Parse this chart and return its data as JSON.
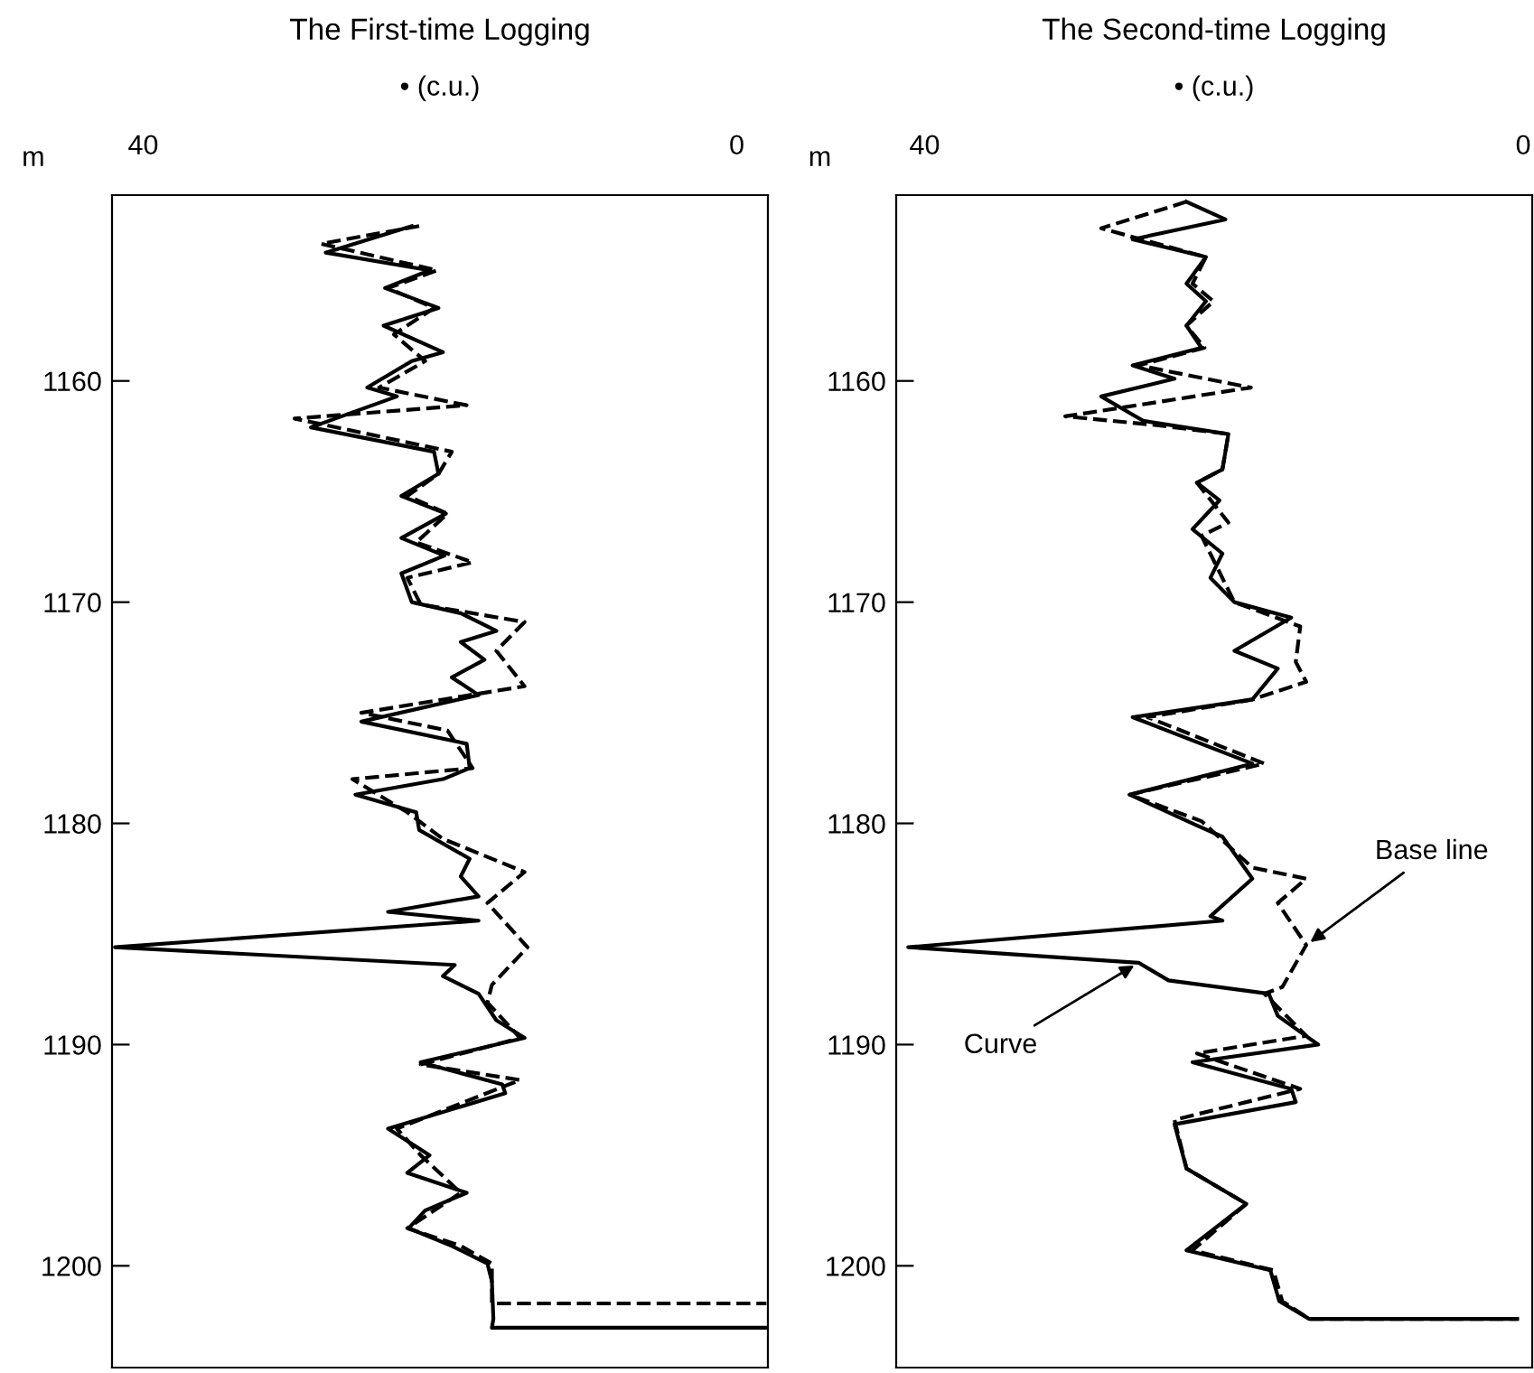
{
  "chart_data": [
    {
      "type": "line",
      "title": "The First-time Logging",
      "xlabel": "• (c.u.)",
      "ylabel": "m",
      "xlim": [
        42.1,
        -2.1
      ],
      "xticks": [
        40,
        0
      ],
      "ylim": [
        1204.6,
        1151.6
      ],
      "yticks": [
        1160,
        1170,
        1180,
        1190,
        1200
      ],
      "grid": false,
      "series": [
        {
          "color": "#000000",
          "line_style": "solid",
          "x": [
            21.9,
            27.7,
            20.7,
            23.7,
            20.1,
            23.8,
            19.8,
            21.9,
            24.9,
            22.9,
            28.7,
            20.4,
            20.1,
            22.6,
            19.6,
            22.6,
            19.7,
            22.6,
            21.9,
            18.6,
            16.2,
            18.6,
            17.0,
            19.2,
            17.4,
            25.3,
            18.2,
            18.0,
            19.8,
            25.7,
            21.6,
            21.4,
            18.0,
            18.6,
            17.4,
            23.5,
            17.4,
            41.9,
            19.0,
            19.8,
            17.4,
            16.2,
            14.3,
            21.3,
            15.8,
            15.6,
            23.5,
            20.7,
            22.2,
            18.2,
            21.0,
            22.1,
            19.2,
            16.8,
            16.5,
            16.4,
            16.5,
            -2
          ],
          "values": [
            1153.0,
            1154.2,
            1155.0,
            1155.8,
            1156.7,
            1157.5,
            1158.7,
            1159.1,
            1160.3,
            1160.7,
            1162.1,
            1163.2,
            1164.2,
            1165.2,
            1166.0,
            1167.1,
            1167.9,
            1168.7,
            1170.0,
            1170.5,
            1171.3,
            1171.8,
            1172.6,
            1173.4,
            1174.2,
            1175.4,
            1176.4,
            1177.5,
            1178.0,
            1178.7,
            1179.5,
            1180.3,
            1181.6,
            1182.4,
            1183.3,
            1184.0,
            1184.4,
            1185.6,
            1186.4,
            1186.9,
            1187.7,
            1188.9,
            1189.7,
            1190.8,
            1191.8,
            1192.2,
            1193.8,
            1195.0,
            1195.8,
            1196.7,
            1197.5,
            1198.3,
            1199.1,
            1199.9,
            1200.7,
            1202.4,
            1202.8,
            1202.8
          ]
        },
        {
          "color": "#000000",
          "line_style": "dashed",
          "x": [
            21.4,
            28.0,
            20.2,
            23.5,
            20.4,
            23.1,
            21.0,
            24.1,
            18.2,
            29.8,
            19.2,
            20.1,
            22.2,
            19.5,
            21.6,
            17.8,
            22.2,
            21.3,
            14.3,
            16.2,
            14.3,
            25.3,
            19.5,
            17.8,
            25.9,
            22.2,
            19.8,
            14.3,
            16.8,
            14.1,
            16.5,
            16.8,
            14.6,
            21.3,
            14.6,
            22.9,
            21.3,
            18.6,
            22.2,
            18.6,
            16.5,
            16.5,
            -2
          ],
          "values": [
            1153.0,
            1153.8,
            1155.0,
            1155.8,
            1156.7,
            1157.9,
            1159.1,
            1160.3,
            1161.1,
            1161.7,
            1163.2,
            1164.2,
            1165.2,
            1166.0,
            1167.3,
            1168.2,
            1168.9,
            1170.1,
            1170.9,
            1172.2,
            1173.8,
            1175.0,
            1175.8,
            1177.5,
            1178.0,
            1179.5,
            1180.7,
            1182.2,
            1183.6,
            1185.6,
            1187.3,
            1188.1,
            1189.7,
            1190.9,
            1191.6,
            1193.8,
            1195.0,
            1196.7,
            1198.3,
            1199.1,
            1199.9,
            1201.7,
            1201.7
          ]
        }
      ]
    },
    {
      "type": "line",
      "title": "The Second-time Logging",
      "xlabel": "• (c.u.)",
      "ylabel": "m",
      "xlim": [
        41.9,
        -0.6
      ],
      "xticks": [
        40,
        0
      ],
      "ylim": [
        1204.6,
        1151.6
      ],
      "yticks": [
        1160,
        1170,
        1180,
        1190,
        1200
      ],
      "grid": false,
      "annotations": [
        {
          "text": "Base line",
          "x": 14.5,
          "y": 1185.5
        },
        {
          "text": "Curve",
          "x": 25.7,
          "y": 1186.3
        }
      ],
      "series": [
        {
          "color": "#000000",
          "line_style": "solid",
          "x": [
            22.5,
            19.9,
            26.1,
            21.2,
            22.5,
            21.2,
            22.5,
            21.5,
            26.1,
            23.3,
            28.2,
            25.4,
            19.7,
            20.1,
            21.8,
            20.3,
            22.1,
            20.1,
            20.9,
            19.3,
            15.5,
            19.3,
            16.4,
            18.1,
            26.1,
            18.1,
            26.3,
            21.8,
            20.1,
            18.1,
            20.9,
            20.1,
            41.1,
            25.7,
            23.7,
            17.0,
            16.4,
            13.7,
            22.1,
            15.5,
            15.2,
            23.3,
            22.5,
            18.5,
            22.5,
            16.9,
            16.3,
            14.3,
            0.4
          ],
          "values": [
            1151.9,
            1152.7,
            1153.6,
            1154.4,
            1155.6,
            1156.4,
            1157.5,
            1158.5,
            1159.3,
            1159.9,
            1160.7,
            1161.8,
            1162.4,
            1164.0,
            1164.6,
            1165.4,
            1166.7,
            1167.8,
            1168.9,
            1170.0,
            1170.7,
            1172.2,
            1173.0,
            1174.4,
            1175.2,
            1177.3,
            1178.7,
            1180.1,
            1180.6,
            1182.5,
            1184.2,
            1184.4,
            1185.6,
            1186.3,
            1187.1,
            1187.7,
            1188.7,
            1190.0,
            1190.8,
            1192.0,
            1192.6,
            1193.6,
            1195.6,
            1197.2,
            1199.3,
            1200.2,
            1201.6,
            1202.4,
            1202.4
          ]
        },
        {
          "color": "#000000",
          "line_style": "dashed",
          "x": [
            22.5,
            28.2,
            21.2,
            22.1,
            20.7,
            22.5,
            21.3,
            25.7,
            18.2,
            30.6,
            24.5,
            19.7,
            20.1,
            21.8,
            19.7,
            21.5,
            19.3,
            14.9,
            15.2,
            14.5,
            18.1,
            25.1,
            17.3,
            26.3,
            21.5,
            18.1,
            14.5,
            16.4,
            14.5,
            16.1,
            17.3,
            14.5,
            21.8,
            14.9,
            23.3,
            22.5,
            18.5,
            22.1,
            16.7,
            16.1,
            14.3,
            0.4
          ],
          "values": [
            1151.9,
            1153.1,
            1154.4,
            1155.6,
            1156.4,
            1157.5,
            1158.5,
            1159.3,
            1160.3,
            1161.6,
            1162.0,
            1162.4,
            1164.0,
            1164.6,
            1166.4,
            1167.0,
            1170.0,
            1171.1,
            1172.7,
            1173.6,
            1174.4,
            1175.2,
            1177.3,
            1178.7,
            1179.9,
            1182.0,
            1182.5,
            1183.6,
            1185.5,
            1187.4,
            1187.7,
            1189.6,
            1190.4,
            1192.0,
            1193.4,
            1195.6,
            1197.2,
            1199.3,
            1200.2,
            1201.6,
            1202.4,
            1202.4
          ]
        }
      ]
    }
  ]
}
